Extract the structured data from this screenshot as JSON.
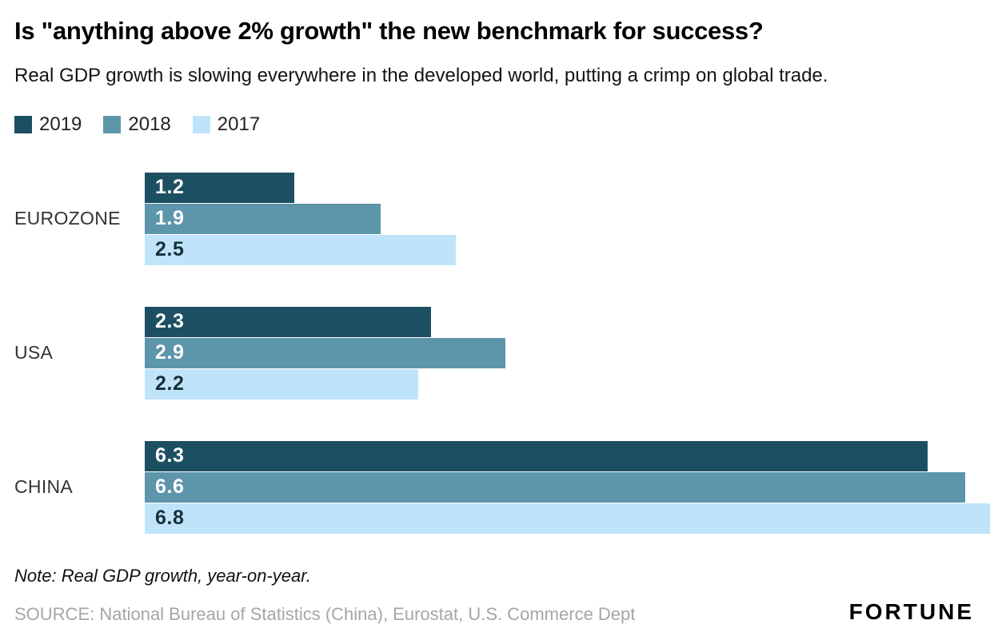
{
  "title": "Is \"anything above 2% growth\" the new benchmark for success?",
  "subtitle": "Real GDP growth is slowing everywhere in the developed world, putting a crimp on global trade.",
  "note": "Note: Real GDP growth, year-on-year.",
  "source": "SOURCE: National Bureau of Statistics (China), Eurostat, U.S. Commerce Dept",
  "brand": "FORTUNE",
  "colors": {
    "year_2019": "#1d4f63",
    "year_2018": "#5d95ab",
    "year_2017": "#bfe4fa"
  },
  "chart_data": {
    "type": "bar",
    "orientation": "horizontal",
    "title": "Is \"anything above 2% growth\" the new benchmark for success?",
    "xlabel": "",
    "ylabel": "",
    "xmax": 6.8,
    "grid": false,
    "legend_position": "top",
    "categories": [
      "EUROZONE",
      "USA",
      "CHINA"
    ],
    "series": [
      {
        "name": "2019",
        "color": "#1d4f63",
        "value_color": "#ffffff",
        "values": [
          1.2,
          2.3,
          6.3
        ]
      },
      {
        "name": "2018",
        "color": "#5d95ab",
        "value_color": "#ffffff",
        "values": [
          1.9,
          2.9,
          6.6
        ]
      },
      {
        "name": "2017",
        "color": "#bfe4fa",
        "value_color": "#16303d",
        "values": [
          2.5,
          2.2,
          6.8
        ]
      }
    ]
  }
}
